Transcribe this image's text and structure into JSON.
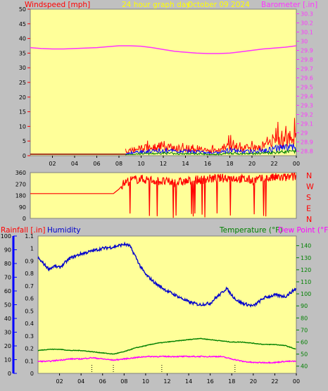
{
  "header": {
    "windspeed_label": "Windspeed [mph]",
    "title": "24 hour graph day",
    "date": "October 09 2024",
    "barometer_label": "Barometer [.in]"
  },
  "humidity_panel_labels": {
    "rainfall_label": "Rainfall [.in]",
    "humidity_label": "Humidity",
    "temperature_label": "Temperature (°F)",
    "dewpoint_label": "Dew Point (°F)"
  },
  "direction_labels": [
    "N",
    "W",
    "S",
    "E",
    "N"
  ],
  "colors": {
    "plot_bg": "#ffff99",
    "frame": "#c0c0c0",
    "wind": "#ff0000",
    "gust_alt": "#0000ff",
    "gust_green": "#008000",
    "barometer": "#ff33ff",
    "direction": "#ff0000",
    "humidity": "#0000cc",
    "temperature": "#008000",
    "dewpoint": "#ff00ff",
    "title_text": "#ffff00",
    "rain_text": "#ff0000",
    "humidity_text": "#0000cc",
    "temp_text": "#008000",
    "dew_text": "#ff00ff"
  },
  "chart_data": [
    {
      "type": "line",
      "title": "24 hour graph day",
      "x_ticks": [
        "02",
        "04",
        "06",
        "08",
        "10",
        "12",
        "14",
        "16",
        "18",
        "20",
        "22",
        "00"
      ],
      "xlim": [
        0,
        24
      ],
      "left_axis": {
        "label": "Windspeed [mph]",
        "ticks": [
          "0",
          "5",
          "10",
          "15",
          "20",
          "25",
          "30",
          "35",
          "40",
          "45",
          "50"
        ],
        "ylim": [
          0,
          50
        ]
      },
      "right_axis": {
        "label": "Barometer [.in]",
        "ticks": [
          "28.8",
          "28.9",
          "29",
          "29.1",
          "29.2",
          "29.3",
          "29.4",
          "29.5",
          "29.6",
          "29.7",
          "29.8",
          "29.9",
          "30",
          "30.1",
          "30.2",
          "30.3"
        ],
        "ylim": [
          28.75,
          30.35
        ]
      },
      "series": [
        {
          "axis": "right",
          "x": [
            0,
            1,
            2,
            3,
            4,
            5,
            6,
            7,
            8,
            9,
            10,
            11,
            12,
            13,
            14,
            15,
            16,
            17,
            18,
            19,
            20,
            21,
            22,
            23,
            24
          ],
          "values": [
            29.93,
            29.92,
            29.915,
            29.915,
            29.92,
            29.925,
            29.93,
            29.94,
            29.95,
            29.95,
            29.945,
            29.93,
            29.91,
            29.89,
            29.88,
            29.87,
            29.865,
            29.865,
            29.87,
            29.885,
            29.9,
            29.915,
            29.925,
            29.935,
            29.95
          ]
        },
        {
          "axis": "left",
          "x": [
            0,
            1,
            2,
            3,
            4,
            5,
            6,
            7,
            8,
            8.5,
            9,
            10,
            11,
            12,
            13,
            14,
            15,
            16,
            17,
            18,
            19,
            20,
            21,
            22,
            23,
            24
          ],
          "values": [
            0.5,
            0.5,
            0.5,
            0.5,
            0.5,
            0.5,
            0.5,
            0.5,
            0.5,
            1,
            2,
            3,
            3,
            4,
            3,
            3,
            3,
            2,
            2,
            4,
            3,
            3,
            4,
            6,
            7,
            8
          ]
        },
        {
          "axis": "left",
          "x": [
            8,
            8.5,
            9,
            10,
            11,
            12,
            13,
            14,
            15,
            16,
            17,
            18,
            19,
            20,
            21,
            22,
            23,
            24
          ],
          "values": [
            0,
            0.5,
            1,
            1.5,
            1.5,
            2,
            1.5,
            1.5,
            1.5,
            1,
            1,
            2,
            1.5,
            1.5,
            2,
            2.5,
            3,
            3
          ]
        }
      ]
    },
    {
      "type": "line",
      "x_ticks": [],
      "xlim": [
        0,
        24
      ],
      "left_axis": {
        "ticks": [
          "0",
          "90",
          "180",
          "270",
          "360"
        ],
        "ylim": [
          0,
          360
        ]
      },
      "right_axis": {
        "labels": [
          "N",
          "W",
          "S",
          "E",
          "N"
        ]
      },
      "series": [
        {
          "axis": "left",
          "x": [
            0,
            7.5,
            8,
            8.5,
            9,
            10,
            11,
            12,
            13,
            14,
            15,
            16,
            17,
            18,
            19,
            20,
            21,
            22,
            23,
            24
          ],
          "values": [
            195,
            195,
            230,
            280,
            300,
            310,
            300,
            290,
            280,
            290,
            300,
            310,
            315,
            320,
            310,
            300,
            310,
            320,
            320,
            330
          ]
        }
      ]
    },
    {
      "type": "line",
      "x_ticks": [
        "02",
        "04",
        "06",
        "08",
        "10",
        "12",
        "14",
        "16",
        "18",
        "20",
        "22",
        "00"
      ],
      "xlim": [
        0,
        24
      ],
      "left_axis_outer": {
        "label": "Humidity",
        "ticks": [
          "0",
          "10",
          "20",
          "30",
          "40",
          "50",
          "60",
          "70",
          "80",
          "90",
          "100"
        ],
        "ylim": [
          0,
          100
        ]
      },
      "left_axis_inner": {
        "label": "Rainfall [.in]",
        "ticks": [
          "0",
          "0.1",
          "0.2",
          "0.3",
          "0.4",
          "0.5",
          "0.6",
          "0.7",
          "0.8",
          "0.9",
          "1",
          "1.1"
        ],
        "ylim": [
          0,
          1.1
        ]
      },
      "right_axis": {
        "label": "Temperature (°F)",
        "ticks": [
          "40",
          "50",
          "60",
          "70",
          "80",
          "90",
          "100",
          "110",
          "120",
          "130",
          "140"
        ],
        "ylim": [
          34,
          148
        ]
      },
      "series": [
        {
          "name": "Humidity",
          "axis": "left_outer",
          "x": [
            0,
            0.5,
            1,
            1.5,
            2,
            3,
            4,
            5,
            6,
            7,
            8,
            8.5,
            9,
            9.5,
            10,
            11,
            12,
            13,
            14,
            15,
            16,
            16.5,
            17,
            17.5,
            18,
            18.5,
            19,
            20,
            21,
            22,
            23,
            24
          ],
          "values": [
            84,
            80,
            76,
            78,
            77,
            84,
            87,
            89,
            91,
            92,
            94,
            93,
            86,
            78,
            72,
            65,
            60,
            56,
            52,
            50,
            51,
            55,
            58,
            62,
            57,
            53,
            51,
            49,
            55,
            57,
            56,
            62
          ]
        },
        {
          "name": "Temperature (°F)",
          "axis": "right",
          "x": [
            0,
            1,
            2,
            3,
            4,
            5,
            6,
            7,
            8,
            9,
            10,
            11,
            12,
            13,
            14,
            15,
            16,
            17,
            18,
            19,
            20,
            21,
            22,
            23,
            24
          ],
          "values": [
            53,
            54,
            54,
            53,
            53,
            52,
            51,
            50,
            52,
            55,
            57,
            59,
            60,
            61,
            62,
            63,
            62,
            61,
            60,
            60,
            59,
            58,
            58,
            57,
            54
          ]
        },
        {
          "name": "Dew Point (°F)",
          "axis": "right",
          "x": [
            0,
            1,
            2,
            3,
            4,
            5,
            6,
            7,
            8,
            9,
            10,
            11,
            12,
            13,
            14,
            15,
            16,
            17,
            18,
            19,
            20,
            21,
            22,
            23,
            24
          ],
          "values": [
            44,
            44,
            45,
            46,
            46,
            47,
            46,
            45,
            46,
            47,
            48,
            48,
            48,
            48,
            48,
            48,
            48,
            48,
            46,
            44,
            43,
            43,
            43,
            44,
            44
          ]
        }
      ]
    }
  ]
}
